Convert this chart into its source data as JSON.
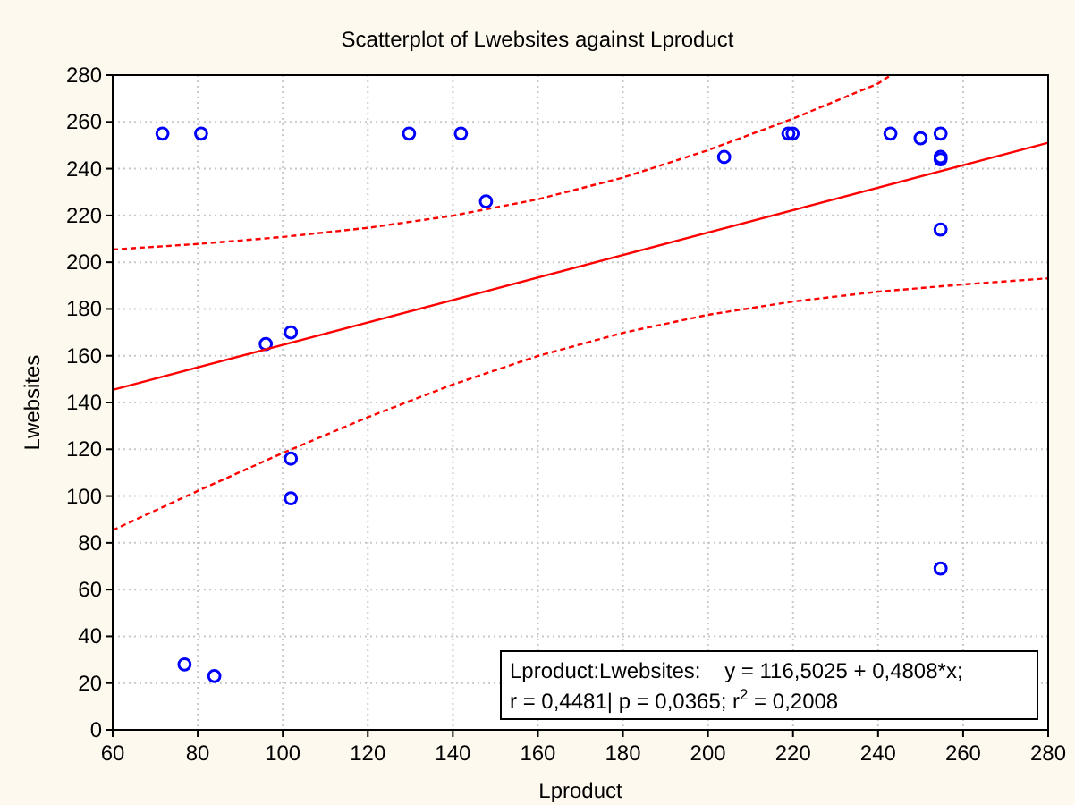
{
  "chart_data": {
    "type": "scatter",
    "title": "Scatterplot of Lwebsites against Lproduct",
    "xlabel": "Lproduct",
    "ylabel": "Lwebsites",
    "xlim": [
      60,
      280
    ],
    "xticks": [
      60,
      80,
      100,
      120,
      140,
      160,
      180,
      200,
      220,
      240,
      260,
      280
    ],
    "ylim": [
      0,
      280
    ],
    "yticks": [
      0,
      20,
      40,
      60,
      80,
      100,
      120,
      140,
      160,
      180,
      200,
      220,
      240,
      260,
      280
    ],
    "grid": true,
    "series": [
      {
        "color": "#0000ff",
        "marker": "circle",
        "x": [
          71.7,
          80.8,
          129.7,
          141.9,
          147.8,
          96.0,
          101.9,
          203.8,
          218.9,
          219.9,
          242.9,
          250.0,
          254.7,
          254.7,
          254.7,
          254.7,
          101.9,
          101.9,
          76.9,
          83.9,
          254.7
        ],
        "values": [
          255,
          255,
          255,
          255,
          226,
          165,
          170,
          245,
          255,
          255,
          255,
          253,
          255,
          245,
          244,
          214,
          116,
          99,
          28,
          23,
          69
        ]
      },
      {
        "type": "line",
        "color": "#ff0000",
        "line_style": "solid",
        "x": [
          60,
          280
        ],
        "values": [
          145.4,
          251.1
        ]
      },
      {
        "type": "line",
        "color": "#ff0000",
        "line_style": "dashed",
        "x": [
          60,
          80,
          100,
          120,
          140,
          160,
          180,
          200,
          220,
          240,
          243
        ],
        "values": [
          205.4,
          207.8,
          210.8,
          214.7,
          219.9,
          226.9,
          236.2,
          247.9,
          261.4,
          276.4,
          280
        ]
      },
      {
        "type": "line",
        "color": "#ff0000",
        "line_style": "dashed",
        "x": [
          60,
          80,
          100,
          120,
          140,
          160,
          180,
          200,
          220,
          240,
          260,
          280
        ],
        "values": [
          85.4,
          102.2,
          118.4,
          133.7,
          147.7,
          159.9,
          169.8,
          177.5,
          183.2,
          187.4,
          190.5,
          193.1
        ]
      }
    ],
    "annotations": [
      "Lproduct:Lwebsites:    y = 116,5025 + 0,4808*x;",
      "r = 0,4481| p = 0,0365; r$^{2}$ = 0,2008"
    ]
  }
}
